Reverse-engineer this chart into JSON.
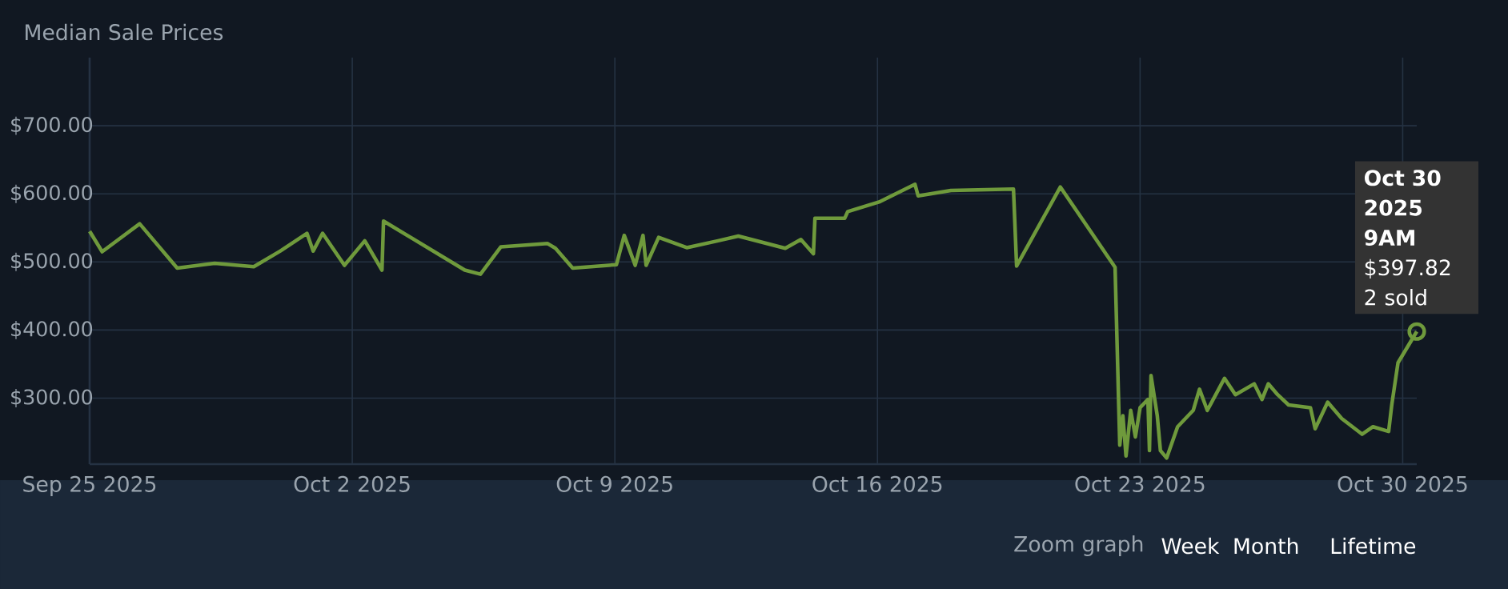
{
  "chart_data": {
    "type": "line",
    "title": "Median Sale Prices",
    "x": [
      "2025-09-25T00:00",
      "2025-09-25T08:00",
      "2025-09-26T08:00",
      "2025-09-27T08:00",
      "2025-09-28T08:00",
      "2025-09-29T09:00",
      "2025-09-30T02:00",
      "2025-09-30T19:00",
      "2025-09-30T23:00",
      "2025-10-01T05:00",
      "2025-10-01T19:00",
      "2025-10-02T08:00",
      "2025-10-02T19:00",
      "2025-10-02T20:00",
      "2025-10-05T00:00",
      "2025-10-05T10:00",
      "2025-10-05T23:00",
      "2025-10-07T05:00",
      "2025-10-07T10:00",
      "2025-10-07T21:00",
      "2025-10-09T01:00",
      "2025-10-09T06:00",
      "2025-10-09T13:00",
      "2025-10-09T18:00",
      "2025-10-09T20:00",
      "2025-10-10T04:00",
      "2025-10-10T22:00",
      "2025-10-11T18:00",
      "2025-10-12T07:00",
      "2025-10-13T13:00",
      "2025-10-13T23:00",
      "2025-10-14T07:00",
      "2025-10-14T08:00",
      "2025-10-15T03:00",
      "2025-10-15T05:00",
      "2025-10-16T01:00",
      "2025-10-17T00:00",
      "2025-10-17T02:00",
      "2025-10-17T23:00",
      "2025-10-19T15:00",
      "2025-10-19T17:00",
      "2025-10-20T21:00",
      "2025-10-22T08:00",
      "2025-10-22T11:00",
      "2025-10-22T13:00",
      "2025-10-22T15:00",
      "2025-10-22T18:00",
      "2025-10-22T21:00",
      "2025-10-23T00:00",
      "2025-10-23T05:00",
      "2025-10-23T06:00",
      "2025-10-23T07:00",
      "2025-10-23T11:00",
      "2025-10-23T13:00",
      "2025-10-23T17:00",
      "2025-10-24T00:00",
      "2025-10-24T10:00",
      "2025-10-24T14:00",
      "2025-10-24T19:00",
      "2025-10-25T06:00",
      "2025-10-25T13:00",
      "2025-10-26T01:00",
      "2025-10-26T06:00",
      "2025-10-26T10:00",
      "2025-10-26T16:00",
      "2025-10-26T23:00",
      "2025-10-27T13:00",
      "2025-10-27T16:00",
      "2025-10-28T00:00",
      "2025-10-28T09:00",
      "2025-10-28T22:00",
      "2025-10-29T05:00",
      "2025-10-29T15:00",
      "2025-10-29T17:00",
      "2025-10-29T21:00",
      "2025-10-30T09:00"
    ],
    "series": [
      {
        "color": "#6f9a3c",
        "values": [
          545,
          515,
          556,
          491,
          498,
          493,
          516,
          542,
          516,
          542,
          495,
          531,
          488,
          560,
          488,
          482,
          522,
          527,
          520,
          491,
          496,
          539,
          495,
          539,
          495,
          536,
          521,
          531,
          538,
          520,
          533,
          512,
          564,
          564,
          574,
          588,
          614,
          597,
          605,
          607,
          494,
          610,
          492,
          231,
          274,
          215,
          282,
          243,
          286,
          298,
          223,
          333,
          274,
          223,
          212,
          258,
          282,
          313,
          282,
          329,
          305,
          321,
          298,
          321,
          305,
          290,
          286,
          255,
          294,
          270,
          247,
          258,
          251,
          290,
          352,
          397.82
        ]
      }
    ],
    "xlim": [
      "2025-09-25T00:00",
      "2025-10-30T09:00"
    ],
    "xticks": [
      {
        "value": "2025-09-25",
        "label": "Sep 25 2025"
      },
      {
        "value": "2025-10-02",
        "label": "Oct 2 2025"
      },
      {
        "value": "2025-10-09",
        "label": "Oct 9 2025"
      },
      {
        "value": "2025-10-16",
        "label": "Oct 16 2025"
      },
      {
        "value": "2025-10-23",
        "label": "Oct 23 2025"
      },
      {
        "value": "2025-10-30",
        "label": "Oct 30 2025"
      }
    ],
    "ylim": [
      203,
      800
    ],
    "yticks": [
      {
        "value": 300,
        "label": "$300.00"
      },
      {
        "value": 400,
        "label": "$400.00"
      },
      {
        "value": 500,
        "label": "$500.00"
      },
      {
        "value": 600,
        "label": "$600.00"
      },
      {
        "value": 700,
        "label": "$700.00"
      }
    ],
    "grid": true,
    "annotations": [
      {
        "text": "**Oct 30 2025 9AM** $397.82 2 sold",
        "x": "2025-10-30T09:00",
        "y": 397.82
      },
      "Zoom graph",
      "Week",
      "Month",
      "Lifetime"
    ]
  }
}
